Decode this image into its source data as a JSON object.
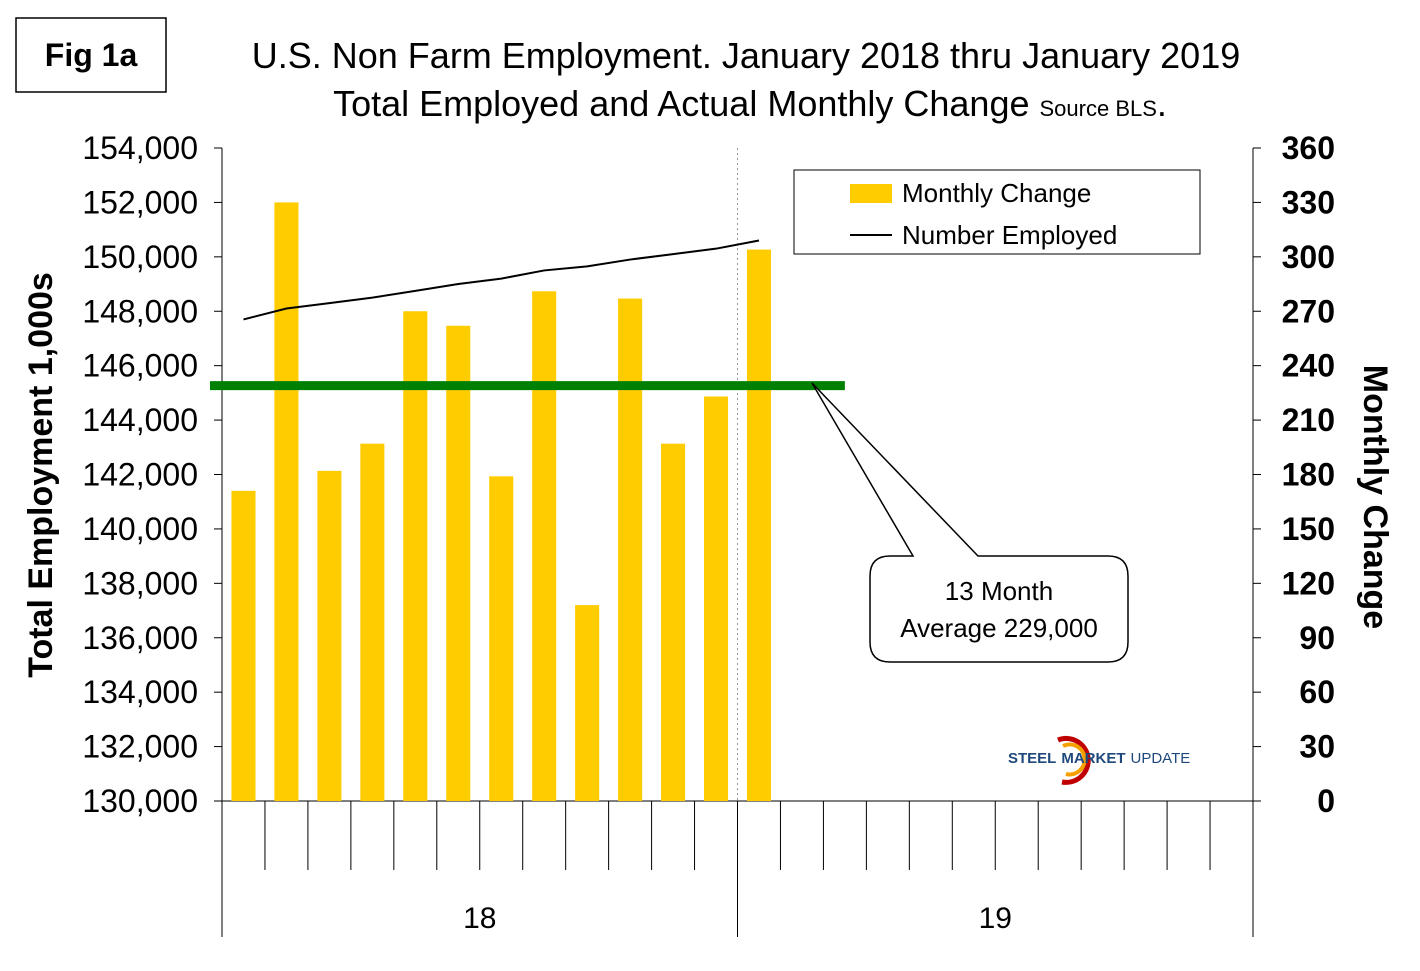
{
  "figure_label": "Fig 1a",
  "colors": {
    "bar": "#FFCC00",
    "line": "#000000",
    "average_line": "#008000",
    "logo_red": "#C00000",
    "logo_blue": "#1F497D",
    "logo_orange": "#F4A000"
  },
  "logo": {
    "part1": "STEEL",
    "part2": "MARKET",
    "part3": "UPDATE"
  },
  "chart_data": {
    "type": "bar",
    "title_line1": "U.S. Non Farm Employment. January 2018 thru January 2019",
    "title_line2": "Total Employed and Actual Monthly Change",
    "title_source": "Source BLS",
    "title_suffix": ".",
    "ylabel_left": "Total Employment 1,000s",
    "ylabel_right": "Monthly Change",
    "ylim_left": [
      130000,
      154000
    ],
    "ylim_right": [
      0,
      360
    ],
    "yticks_left": [
      "130,000",
      "132,000",
      "134,000",
      "136,000",
      "138,000",
      "140,000",
      "142,000",
      "144,000",
      "146,000",
      "148,000",
      "150,000",
      "152,000",
      "154,000"
    ],
    "yticks_right": [
      "0",
      "30",
      "60",
      "90",
      "120",
      "150",
      "180",
      "210",
      "240",
      "270",
      "300",
      "330",
      "360"
    ],
    "slots": 24,
    "year_groups": [
      {
        "label": "18",
        "start": 0,
        "end": 12
      },
      {
        "label": "19",
        "start": 12,
        "end": 24
      }
    ],
    "series": [
      {
        "name": "Monthly Change",
        "axis": "right",
        "kind": "bar",
        "values": [
          171,
          330,
          182,
          197,
          270,
          262,
          179,
          281,
          108,
          277,
          197,
          223,
          304
        ]
      },
      {
        "name": "Number Employed",
        "axis": "left",
        "kind": "line",
        "values": [
          147700,
          148100,
          148300,
          148500,
          148750,
          149000,
          149200,
          149500,
          149650,
          149900,
          150100,
          150300,
          150600
        ]
      }
    ],
    "average": {
      "value": 229,
      "axis": "right",
      "start_slot": 0,
      "end_slot": 14.5
    },
    "legend": [
      {
        "label": "Monthly Change",
        "kind": "bar"
      },
      {
        "label": "Number Employed",
        "kind": "line"
      }
    ],
    "annotation": {
      "line1": "13 Month",
      "line2": "Average 229,000"
    }
  }
}
